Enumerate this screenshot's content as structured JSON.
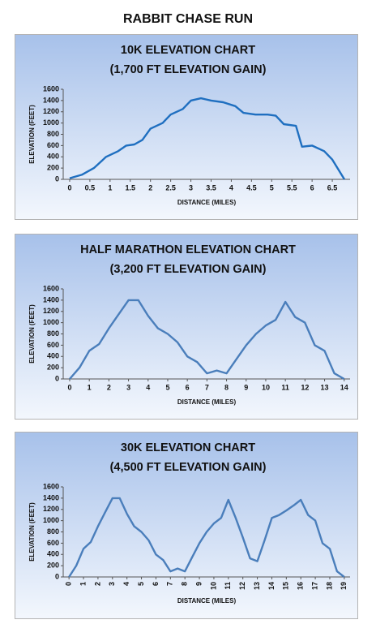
{
  "title": "RABBIT CHASE RUN",
  "chart_data": [
    {
      "type": "line",
      "title": "10K ELEVATION CHART",
      "subtitle": "(1,700 FT ELEVATION GAIN)",
      "x_label": "DISTANCE (MILES)",
      "y_label": "ELEVATION (FEET)",
      "color": "#1f6fc0",
      "x": [
        0,
        0.3,
        0.6,
        0.9,
        1.2,
        1.4,
        1.6,
        1.8,
        2.0,
        2.3,
        2.5,
        2.8,
        3.0,
        3.25,
        3.5,
        3.8,
        4.1,
        4.3,
        4.6,
        4.9,
        5.1,
        5.3,
        5.6,
        5.75,
        6.0,
        6.3,
        6.5,
        6.8
      ],
      "values": [
        20,
        80,
        200,
        400,
        500,
        600,
        620,
        700,
        900,
        1000,
        1150,
        1250,
        1400,
        1440,
        1400,
        1370,
        1300,
        1180,
        1150,
        1150,
        1130,
        980,
        950,
        580,
        600,
        500,
        350,
        0
      ],
      "xlim": [
        -0.16,
        6.94
      ],
      "xticks": [
        0,
        0.5,
        1,
        1.5,
        2,
        2.5,
        3,
        3.5,
        4,
        4.5,
        5,
        5.5,
        6,
        6.5
      ],
      "ylim": [
        0,
        1600
      ],
      "yticks": [
        0,
        200,
        400,
        600,
        800,
        1000,
        1200,
        1400,
        1600
      ],
      "rotate_xticks": false
    },
    {
      "type": "line",
      "title": "HALF MARATHON ELEVATION CHART",
      "subtitle": "(3,200 FT ELEVATION GAIN)",
      "x_label": "DISTANCE (MILES)",
      "y_label": "ELEVATION (FEET)",
      "color": "#4a7ebb",
      "x": [
        0,
        0.5,
        1,
        1.5,
        2,
        2.5,
        3,
        3.5,
        4,
        4.5,
        5,
        5.5,
        6,
        6.5,
        7,
        7.5,
        8,
        8.5,
        9,
        9.5,
        10,
        10.5,
        11,
        11.5,
        12,
        12.5,
        13,
        13.5,
        14
      ],
      "values": [
        0,
        200,
        500,
        620,
        900,
        1150,
        1400,
        1400,
        1120,
        900,
        800,
        650,
        400,
        300,
        100,
        150,
        100,
        350,
        600,
        800,
        950,
        1050,
        1370,
        1100,
        1000,
        600,
        500,
        100,
        0
      ],
      "xlim": [
        -0.33,
        14.3
      ],
      "xticks": [
        0,
        1,
        2,
        3,
        4,
        5,
        6,
        7,
        8,
        9,
        10,
        11,
        12,
        13,
        14
      ],
      "ylim": [
        0,
        1600
      ],
      "yticks": [
        0,
        200,
        400,
        600,
        800,
        1000,
        1200,
        1400,
        1600
      ],
      "rotate_xticks": false
    },
    {
      "type": "line",
      "title": "30K ELEVATION CHART",
      "subtitle": "(4,500 FT ELEVATION GAIN)",
      "x_label": "DISTANCE (MILES)",
      "y_label": "ELEVATION (FEET)",
      "color": "#4a7ebb",
      "x": [
        0,
        0.5,
        1,
        1.5,
        2,
        2.5,
        3,
        3.5,
        4,
        4.5,
        5,
        5.5,
        6,
        6.5,
        7,
        7.5,
        8,
        8.5,
        9,
        9.5,
        10,
        10.5,
        11,
        11.5,
        12,
        12.5,
        13,
        13.5,
        14,
        14.5,
        15,
        15.5,
        16,
        16.5,
        17,
        17.5,
        18,
        18.5,
        19
      ],
      "values": [
        0,
        200,
        500,
        620,
        900,
        1150,
        1400,
        1400,
        1120,
        900,
        800,
        650,
        400,
        300,
        100,
        150,
        100,
        350,
        600,
        800,
        950,
        1050,
        1370,
        1050,
        700,
        330,
        280,
        650,
        1050,
        1100,
        1180,
        1270,
        1370,
        1100,
        1000,
        600,
        500,
        100,
        0
      ],
      "xlim": [
        -0.4,
        19.4
      ],
      "xticks": [
        0,
        1,
        2,
        3,
        4,
        5,
        6,
        7,
        8,
        9,
        10,
        11,
        12,
        13,
        14,
        15,
        16,
        17,
        18,
        19
      ],
      "ylim": [
        0,
        1600
      ],
      "yticks": [
        0,
        200,
        400,
        600,
        800,
        1000,
        1200,
        1400,
        1600
      ],
      "rotate_xticks": true
    }
  ]
}
